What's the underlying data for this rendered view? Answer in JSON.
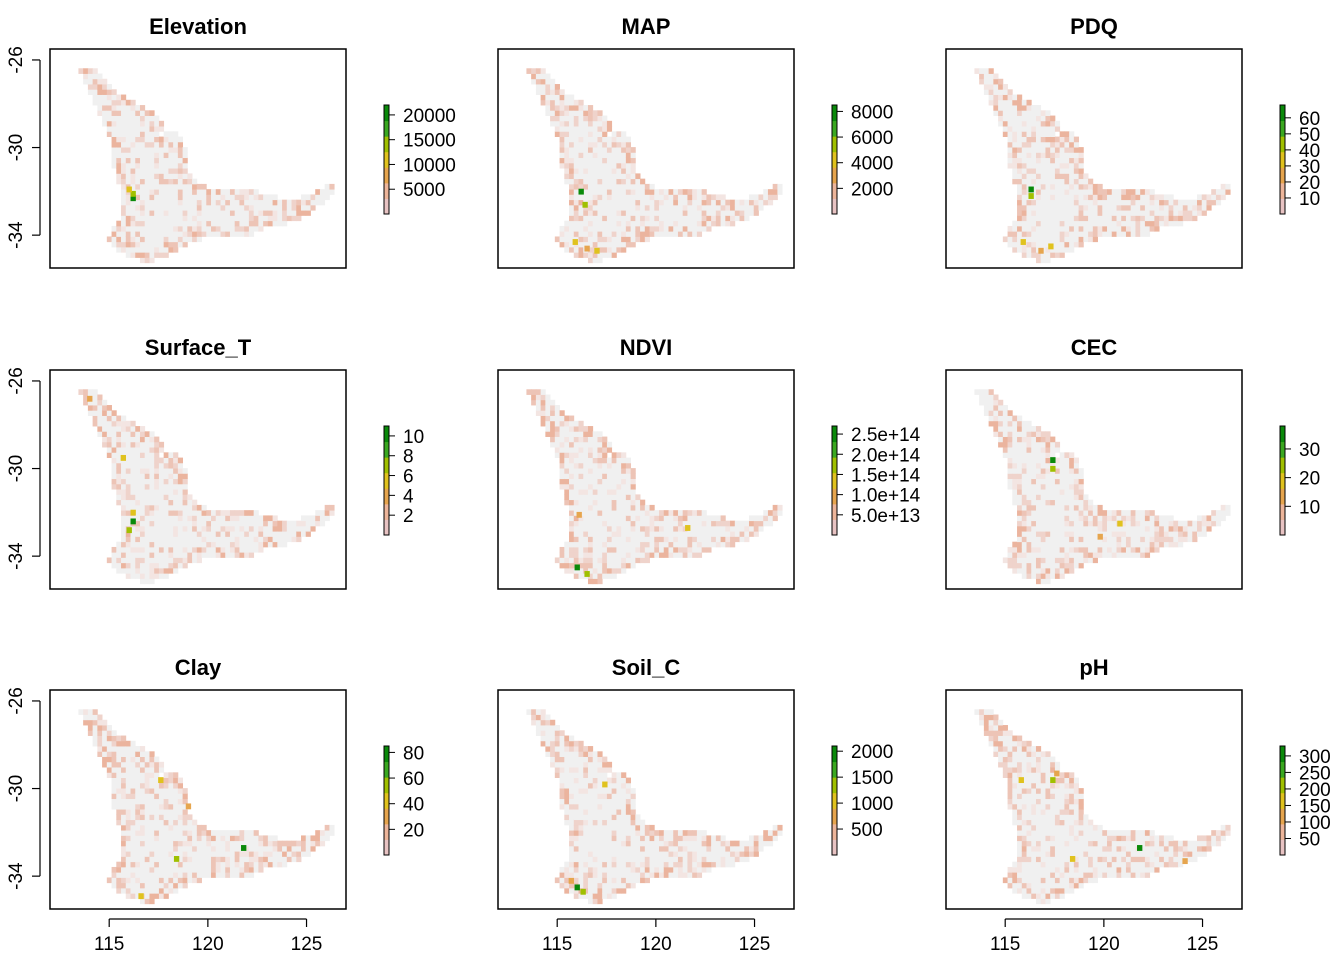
{
  "figure": {
    "type": "raster-map-grid",
    "palette": [
      "#e8c3c3",
      "#edb59a",
      "#e6a54e",
      "#e0c21e",
      "#a0c000",
      "#3aa820",
      "#0a8a0a"
    ],
    "background_color": "#f0f0f0"
  },
  "chart_data": [
    {
      "type": "heatmap",
      "title": "Elevation",
      "legend_ticks": [
        "20000",
        "15000",
        "10000",
        "5000"
      ],
      "legend_values": [
        20000,
        15000,
        10000,
        5000
      ],
      "legend_range": [
        0,
        22000
      ],
      "hotspots_xy": [
        [
          116.2,
          -32.3
        ],
        [
          116.2,
          -32.1
        ],
        [
          116.0,
          -31.9
        ]
      ],
      "xlim": [
        112,
        127
      ],
      "ylim": [
        -35.5,
        -25.5
      ],
      "x_ticks": [
        "115",
        "120",
        "125"
      ],
      "y_ticks": [
        "-26",
        "-30",
        "-34"
      ]
    },
    {
      "type": "heatmap",
      "title": "MAP",
      "legend_ticks": [
        "8000",
        "6000",
        "4000",
        "2000"
      ],
      "legend_values": [
        8000,
        6000,
        4000,
        2000
      ],
      "legend_range": [
        0,
        8500
      ],
      "hotspots_xy": [
        [
          116.2,
          -32.0
        ],
        [
          116.4,
          -32.6
        ],
        [
          115.9,
          -34.3
        ],
        [
          116.5,
          -34.6
        ],
        [
          117.0,
          -34.7
        ]
      ],
      "xlim": [
        112,
        127
      ],
      "ylim": [
        -35.5,
        -25.5
      ],
      "x_ticks": [
        "115",
        "120",
        "125"
      ],
      "y_ticks": [
        "-26",
        "-30",
        "-34"
      ]
    },
    {
      "type": "heatmap",
      "title": "PDQ",
      "legend_ticks": [
        "60",
        "50",
        "40",
        "30",
        "20",
        "10"
      ],
      "legend_values": [
        60,
        50,
        40,
        30,
        20,
        10
      ],
      "legend_range": [
        0,
        68
      ],
      "hotspots_xy": [
        [
          116.3,
          -31.9
        ],
        [
          116.3,
          -32.2
        ],
        [
          115.9,
          -34.3
        ],
        [
          116.8,
          -34.7
        ],
        [
          117.3,
          -34.5
        ]
      ],
      "xlim": [
        112,
        127
      ],
      "ylim": [
        -35.5,
        -25.5
      ],
      "x_ticks": [
        "115",
        "120",
        "125"
      ],
      "y_ticks": [
        "-26",
        "-30",
        "-34"
      ]
    },
    {
      "type": "heatmap",
      "title": "Surface_T",
      "legend_ticks": [
        "10",
        "8",
        "6",
        "4",
        "2"
      ],
      "legend_values": [
        10,
        8,
        6,
        4,
        2
      ],
      "legend_range": [
        0,
        11
      ],
      "hotspots_xy": [
        [
          116.2,
          -32.4
        ],
        [
          116.0,
          -32.8
        ],
        [
          115.7,
          -29.5
        ],
        [
          114.0,
          -26.8
        ],
        [
          116.2,
          -32.0
        ]
      ],
      "xlim": [
        112,
        127
      ],
      "ylim": [
        -35.5,
        -25.5
      ],
      "x_ticks": [
        "115",
        "120",
        "125"
      ],
      "y_ticks": [
        "-26",
        "-30",
        "-34"
      ]
    },
    {
      "type": "heatmap",
      "title": "NDVI",
      "legend_ticks": [
        "2.5e+14",
        "2.0e+14",
        "1.5e+14",
        "1.0e+14",
        "5.0e+13"
      ],
      "legend_values": [
        250000000000000.0,
        200000000000000.0,
        150000000000000.0,
        100000000000000.0,
        50000000000000.0
      ],
      "legend_range": [
        0,
        270000000000000.0
      ],
      "hotspots_xy": [
        [
          116.0,
          -34.5
        ],
        [
          116.5,
          -34.8
        ],
        [
          121.6,
          -32.7
        ],
        [
          116.1,
          -32.1
        ]
      ],
      "xlim": [
        112,
        127
      ],
      "ylim": [
        -35.5,
        -25.5
      ],
      "x_ticks": [
        "115",
        "120",
        "125"
      ],
      "y_ticks": [
        "-26",
        "-30",
        "-34"
      ]
    },
    {
      "type": "heatmap",
      "title": "CEC",
      "legend_ticks": [
        "30",
        "20",
        "10"
      ],
      "legend_values": [
        30,
        20,
        10
      ],
      "legend_range": [
        0,
        38
      ],
      "hotspots_xy": [
        [
          117.4,
          -29.6
        ],
        [
          117.4,
          -30.0
        ],
        [
          120.8,
          -32.5
        ],
        [
          119.8,
          -33.1
        ]
      ],
      "xlim": [
        112,
        127
      ],
      "ylim": [
        -35.5,
        -25.5
      ],
      "x_ticks": [
        "115",
        "120",
        "125"
      ],
      "y_ticks": [
        "-26",
        "-30",
        "-34"
      ]
    },
    {
      "type": "heatmap",
      "title": "Clay",
      "legend_ticks": [
        "80",
        "60",
        "40",
        "20"
      ],
      "legend_values": [
        80,
        60,
        40,
        20
      ],
      "legend_range": [
        0,
        85
      ],
      "hotspots_xy": [
        [
          121.8,
          -32.7
        ],
        [
          118.4,
          -33.2
        ],
        [
          117.6,
          -29.6
        ],
        [
          119.0,
          -30.8
        ],
        [
          116.6,
          -34.9
        ]
      ],
      "xlim": [
        112,
        127
      ],
      "ylim": [
        -35.5,
        -25.5
      ],
      "x_ticks": [
        "115",
        "120",
        "125"
      ],
      "y_ticks": [
        "-26",
        "-30",
        "-34"
      ]
    },
    {
      "type": "heatmap",
      "title": "Soil_C",
      "legend_ticks": [
        "2000",
        "1500",
        "1000",
        "500"
      ],
      "legend_values": [
        2000,
        1500,
        1000,
        500
      ],
      "legend_range": [
        0,
        2100
      ],
      "hotspots_xy": [
        [
          116.0,
          -34.5
        ],
        [
          116.3,
          -34.7
        ],
        [
          117.4,
          -29.8
        ],
        [
          115.7,
          -34.2
        ]
      ],
      "xlim": [
        112,
        127
      ],
      "ylim": [
        -35.5,
        -25.5
      ],
      "x_ticks": [
        "115",
        "120",
        "125"
      ],
      "y_ticks": [
        "-26",
        "-30",
        "-34"
      ]
    },
    {
      "type": "heatmap",
      "title": "pH",
      "legend_ticks": [
        "300",
        "250",
        "200",
        "150",
        "100",
        "50"
      ],
      "legend_values": [
        300,
        250,
        200,
        150,
        100,
        50
      ],
      "legend_range": [
        0,
        330
      ],
      "hotspots_xy": [
        [
          121.8,
          -32.7
        ],
        [
          117.4,
          -29.6
        ],
        [
          115.8,
          -29.6
        ],
        [
          117.6,
          -29.3
        ],
        [
          118.4,
          -33.2
        ],
        [
          124.1,
          -33.3
        ]
      ],
      "xlim": [
        112,
        127
      ],
      "ylim": [
        -35.5,
        -25.5
      ],
      "x_ticks": [
        "115",
        "120",
        "125"
      ],
      "y_ticks": [
        "-26",
        "-30",
        "-34"
      ]
    }
  ]
}
